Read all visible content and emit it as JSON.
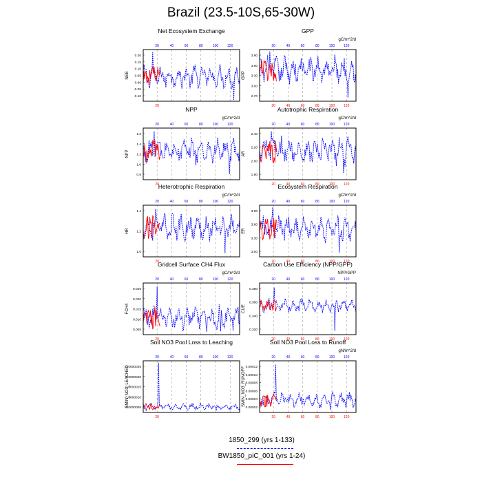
{
  "title": "Brazil (23.5-10S,65-30W)",
  "colors": {
    "model": "#0000ff",
    "obs": "#ff0000",
    "frame": "#000000",
    "grid": "#888888"
  },
  "chart_data": [
    {
      "type": "line",
      "title": "Net Ecosystem Exchange",
      "units": "",
      "ylabel": "NEE",
      "yticks": [
        "0.20",
        "0.15",
        "0.10",
        "0.05",
        "0.00",
        "-0.05",
        "-0.10"
      ],
      "top_ticks": [
        "20",
        "40",
        "60",
        "80",
        "100",
        "120"
      ],
      "bottom_ticks": [
        "20"
      ],
      "ylim": [
        -0.16,
        0.24
      ],
      "base": 0.03,
      "amp": 0.06,
      "spike": [
        0.22,
        -0.15
      ],
      "series": [
        {
          "name": "1850_299 (yrs 1-133)",
          "years": 133
        },
        {
          "name": "BW1850_piC_001 (yrs 1-24)",
          "years": 24
        }
      ]
    },
    {
      "type": "line",
      "title": "GPP",
      "units": "gC/m^2/d",
      "ylabel": "GPP",
      "yticks": [
        "3.90",
        "3.60",
        "3.30",
        "3.00",
        "2.70"
      ],
      "top_ticks": [
        "20",
        "40",
        "60",
        "80",
        "100",
        "120"
      ],
      "bottom_ticks": [
        "20",
        "40",
        "60",
        "80",
        "100",
        "120"
      ],
      "ylim": [
        2.65,
        4.05
      ],
      "base": 3.5,
      "amp": 0.25,
      "spike": [
        4.0,
        2.75
      ],
      "series": [
        {
          "name": "1850_299 (yrs 1-133)",
          "years": 133
        },
        {
          "name": "BW1850_piC_001 (yrs 1-24)",
          "years": 24
        }
      ]
    },
    {
      "type": "line",
      "title": "NPP",
      "units": "gC/m^2/d",
      "ylabel": "NPP",
      "yticks": [
        "1.6",
        "1.4",
        "1.2",
        "1.0",
        "0.8"
      ],
      "top_ticks": [
        "20",
        "40",
        "60",
        "80",
        "100",
        "120"
      ],
      "bottom_ticks": [
        "20"
      ],
      "ylim": [
        0.75,
        1.65
      ],
      "base": 1.25,
      "amp": 0.15,
      "spike": [
        1.6,
        0.85
      ],
      "series": [
        {
          "name": "1850_299 (yrs 1-133)",
          "years": 133
        },
        {
          "name": "BW1850_piC_001 (yrs 1-24)",
          "years": 24
        }
      ]
    },
    {
      "type": "line",
      "title": "Autotrophic Respiration",
      "units": "gC/m^2/d",
      "ylabel": "AR",
      "yticks": [
        "2.40",
        "2.20",
        "2.00",
        "1.80"
      ],
      "top_ticks": [
        "20",
        "40",
        "60",
        "80",
        "100",
        "120"
      ],
      "bottom_ticks": [
        "20",
        "40",
        "60",
        "80",
        "100",
        "120"
      ],
      "ylim": [
        1.75,
        2.55
      ],
      "base": 2.2,
      "amp": 0.15,
      "spike": [
        2.5,
        1.85
      ],
      "series": [
        {
          "name": "1850_299 (yrs 1-133)",
          "years": 133
        },
        {
          "name": "BW1850_piC_001 (yrs 1-24)",
          "years": 24
        }
      ]
    },
    {
      "type": "line",
      "title": "Heterotrophic Respiration",
      "units": "gC/m^2/d",
      "ylabel": "HR",
      "yticks": [
        "1.4",
        "1.2",
        "1.0"
      ],
      "top_ticks": [
        "20",
        "40",
        "60",
        "80",
        "100",
        "120"
      ],
      "bottom_ticks": [
        "20"
      ],
      "ylim": [
        0.85,
        1.55
      ],
      "base": 1.25,
      "amp": 0.12,
      "spike": [
        1.5,
        0.9
      ],
      "series": [
        {
          "name": "1850_299 (yrs 1-133)",
          "years": 133
        },
        {
          "name": "BW1850_piC_001 (yrs 1-24)",
          "years": 24
        }
      ]
    },
    {
      "type": "line",
      "title": "Ecosystem Respiration",
      "units": "gC/m^2/d",
      "ylabel": "ER",
      "yticks": [
        "3.90",
        "3.60",
        "3.30",
        "3.00"
      ],
      "top_ticks": [
        "20",
        "40",
        "60",
        "80",
        "100",
        "120"
      ],
      "bottom_ticks": [
        "20",
        "40",
        "60",
        "80",
        "100",
        "120"
      ],
      "ylim": [
        2.85,
        4.05
      ],
      "base": 3.5,
      "amp": 0.2,
      "spike": [
        4.0,
        2.95
      ],
      "series": [
        {
          "name": "1850_299 (yrs 1-133)",
          "years": 133
        },
        {
          "name": "BW1850_piC_001 (yrs 1-24)",
          "years": 24
        }
      ]
    },
    {
      "type": "line",
      "title": "Gridcell Surface CH4 Flux",
      "units": "gC/m^2/d",
      "ylabel": "FCH4",
      "yticks": [
        "0.025",
        "0.020",
        "0.015",
        "0.010",
        "0.005"
      ],
      "top_ticks": [
        "20",
        "40",
        "60",
        "80",
        "100",
        "120"
      ],
      "bottom_ticks": [
        "20"
      ],
      "ylim": [
        0.0035,
        0.0265
      ],
      "base": 0.011,
      "amp": 0.004,
      "spike": [
        0.025,
        0.005
      ],
      "series": [
        {
          "name": "1850_299 (yrs 1-133)",
          "years": 133
        },
        {
          "name": "BW1850_piC_001 (yrs 1-24)",
          "years": 24
        }
      ]
    },
    {
      "type": "line",
      "title": "Carbon Use Efficiency (NPP/GPP)",
      "units": "NPP/GPP",
      "ylabel": "CUE",
      "yticks": [
        "0.380",
        "0.360",
        "0.340",
        "0.320"
      ],
      "top_ticks": [
        "20",
        "40",
        "60",
        "80",
        "100",
        "120"
      ],
      "bottom_ticks": [
        "20",
        "40",
        "60",
        "80",
        "100",
        "120"
      ],
      "ylim": [
        0.312,
        0.392
      ],
      "base": 0.357,
      "amp": 0.007,
      "spike": [
        0.385,
        0.318
      ],
      "series": [
        {
          "name": "1850_299 (yrs 1-133)",
          "years": 133
        },
        {
          "name": "BW1850_piC_001 (yrs 1-24)",
          "years": 24
        }
      ]
    },
    {
      "type": "line",
      "title": "Soil NO3 Pool Loss to Leaching",
      "units": "",
      "ylabel": "SMIN_NO3_LEACHED",
      "yticks": [
        "0.0000025",
        "0.0000020",
        "0.0000015",
        "0.0000010",
        "0.0000005"
      ],
      "top_ticks": [
        "20",
        "40",
        "60",
        "80",
        "100",
        "120"
      ],
      "bottom_ticks": [
        "20"
      ],
      "ylim": [
        2e-07,
        2.9e-06
      ],
      "base": 5e-07,
      "amp": 1.2e-07,
      "spike": [
        2.8e-06,
        3e-07
      ],
      "series": [
        {
          "name": "1850_299 (yrs 1-133)",
          "years": 133
        },
        {
          "name": "BW1850_piC_001 (yrs 1-24)",
          "years": 24
        }
      ]
    },
    {
      "type": "line",
      "title": "Soil NO3 Pool Loss to Runoff",
      "units": "gN/m^2/d",
      "ylabel": "SMIN_NO3_RUNOFF",
      "yticks": [
        "0.00012",
        "0.00010",
        "0.00008",
        "0.00006",
        "0.00004",
        "0.00002"
      ],
      "top_ticks": [
        "20",
        "40",
        "60",
        "80",
        "100",
        "120"
      ],
      "bottom_ticks": [
        "20",
        "40",
        "60",
        "80",
        "100",
        "120"
      ],
      "ylim": [
        1.2e-05,
        0.000128
      ],
      "base": 4e-05,
      "amp": 1.2e-05,
      "spike": [
        0.00012,
        1.8e-05
      ],
      "series": [
        {
          "name": "1850_299 (yrs 1-133)",
          "years": 133
        },
        {
          "name": "BW1850_piC_001 (yrs 1-24)",
          "years": 24
        }
      ]
    }
  ],
  "legend": [
    {
      "label": "1850_299 (yrs 1-133)",
      "color": "#0000ff",
      "style": "dashed"
    },
    {
      "label": "BW1850_piC_001 (yrs 1-24)",
      "color": "#ff0000",
      "style": "solid"
    }
  ]
}
